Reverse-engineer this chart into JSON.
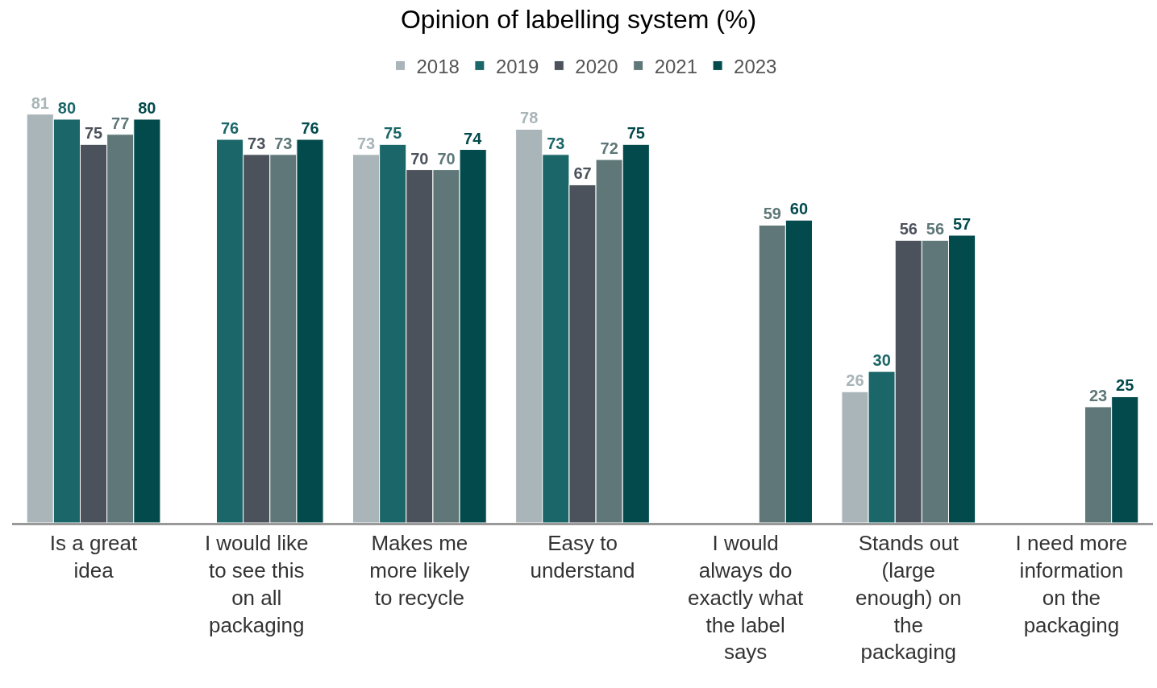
{
  "chart_data": {
    "type": "bar",
    "title": "Opinion of labelling system (%)",
    "categories": [
      "Is a great idea",
      "I would like to see this on all packaging",
      "Makes me more likely to recycle",
      "Easy to understand",
      "I would always do exactly what the label says",
      "Stands out (large enough) on the packaging",
      "I need more information on the packaging"
    ],
    "series": [
      {
        "name": "2018",
        "color": "#a9b5b8",
        "values": [
          81,
          null,
          73,
          78,
          null,
          26,
          null
        ]
      },
      {
        "name": "2019",
        "color": "#1b6669",
        "values": [
          80,
          76,
          75,
          73,
          null,
          30,
          null
        ]
      },
      {
        "name": "2020",
        "color": "#4c525c",
        "values": [
          75,
          73,
          70,
          67,
          null,
          56,
          null
        ]
      },
      {
        "name": "2021",
        "color": "#5f7778",
        "values": [
          77,
          73,
          70,
          72,
          59,
          56,
          23
        ]
      },
      {
        "name": "2023",
        "color": "#034a4c",
        "values": [
          80,
          76,
          74,
          75,
          60,
          57,
          25
        ]
      }
    ],
    "data_labels": true,
    "legend": "top",
    "tick_labels": "x"
  }
}
